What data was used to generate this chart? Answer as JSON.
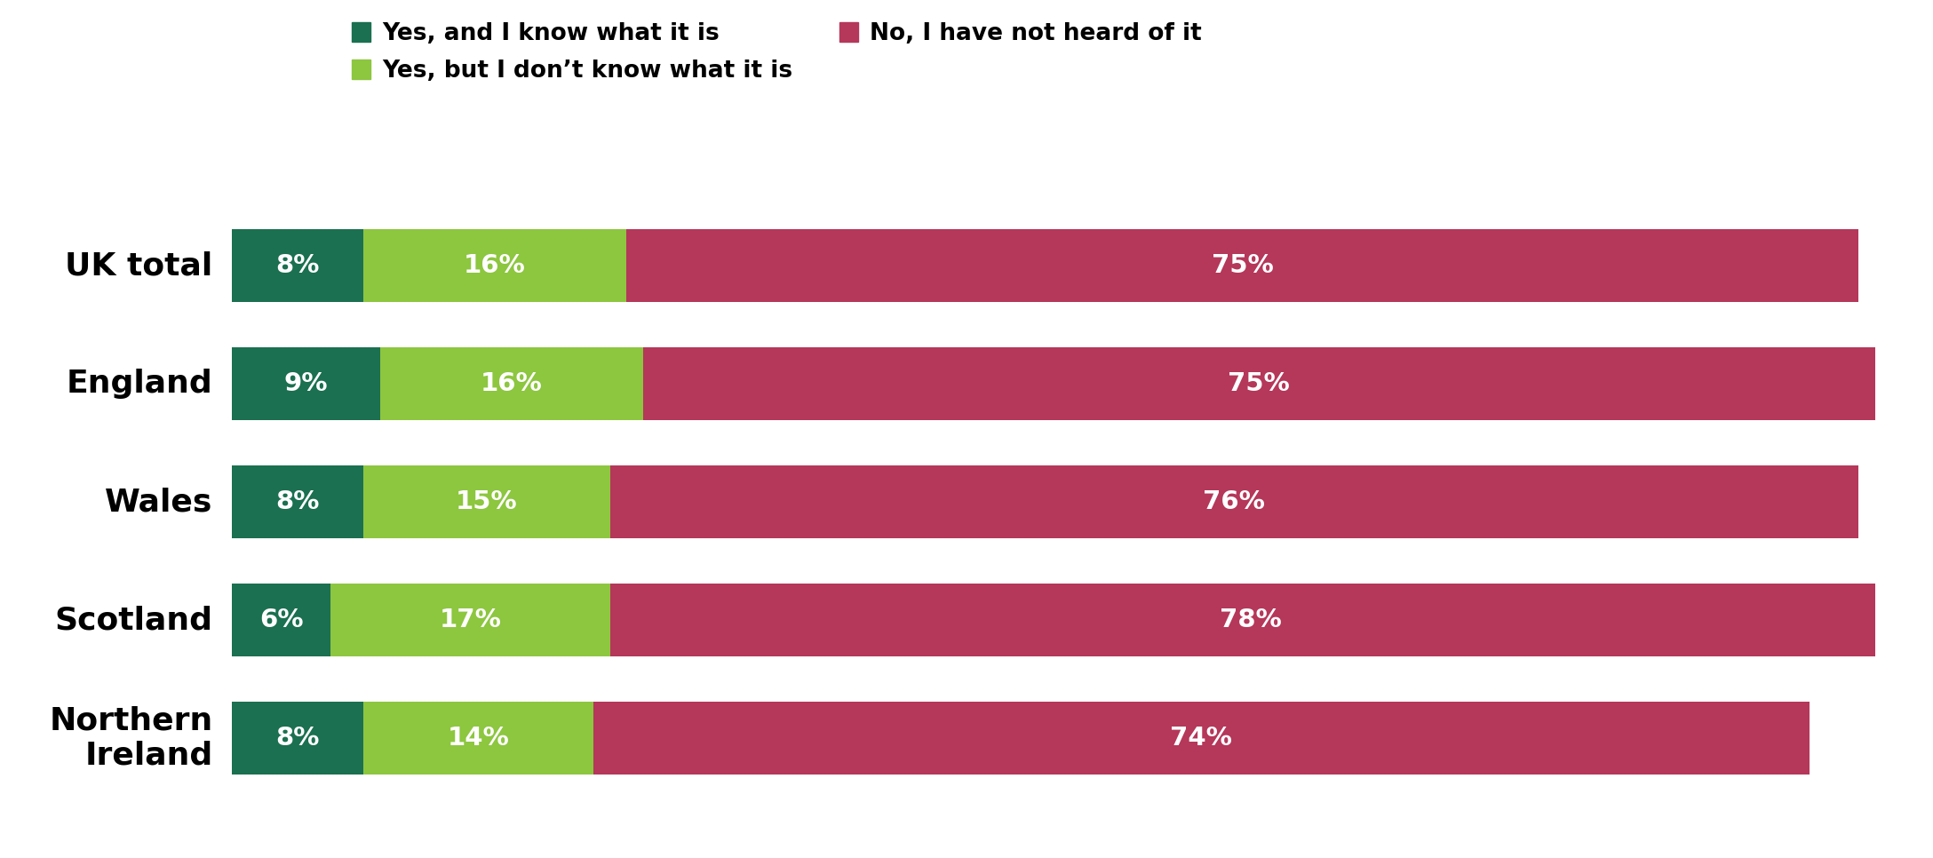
{
  "categories": [
    "UK total",
    "England",
    "Wales",
    "Scotland",
    "Northern\nIreland"
  ],
  "series": [
    {
      "label": "Yes, and I know what it is",
      "color": "#1a7050",
      "values": [
        8,
        9,
        8,
        6,
        8
      ]
    },
    {
      "label": "Yes, but I don’t know what it is",
      "color": "#8dc63f",
      "values": [
        16,
        16,
        15,
        17,
        14
      ]
    },
    {
      "label": "No, I have not heard of it",
      "color": "#b5375a",
      "values": [
        75,
        75,
        76,
        78,
        74
      ]
    }
  ],
  "bar_height": 0.62,
  "text_color": "#ffffff",
  "label_fontsize": 21,
  "legend_fontsize": 19,
  "ytick_fontsize": 26,
  "background_color": "#ffffff"
}
